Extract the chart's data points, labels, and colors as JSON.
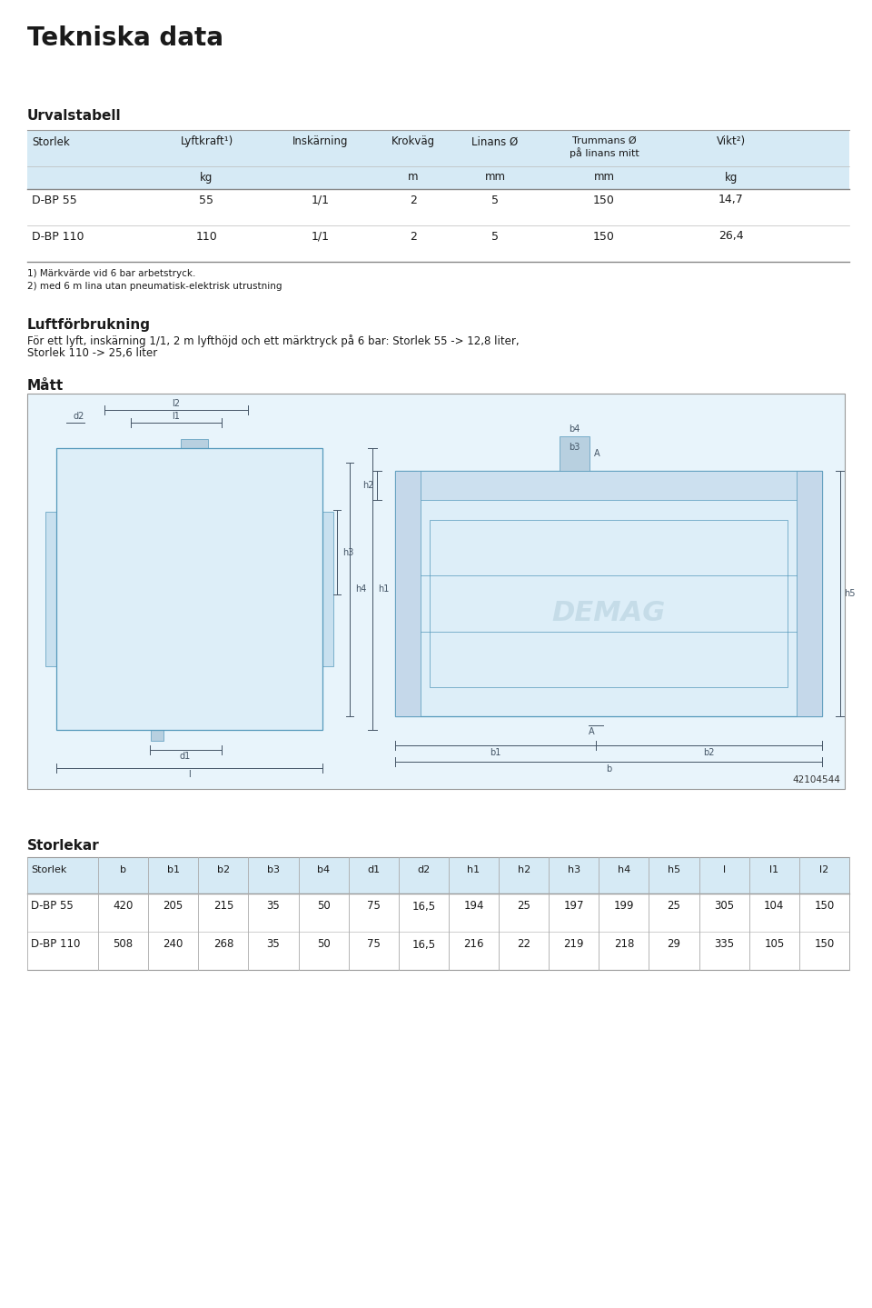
{
  "page_title": "Tekniska data",
  "section1_title": "Urvalstabell",
  "urval_col_names": [
    "Storlek",
    "Lyftkraft¹⁾",
    "Inskärning",
    "Krokväg",
    "Linans Ø",
    "Trummans Ø\npå linans mitt",
    "Vikt²⁾"
  ],
  "urval_units": [
    "",
    "kg",
    "",
    "m",
    "mm",
    "mm",
    "kg"
  ],
  "urval_rows": [
    [
      "D-BP 55",
      "55",
      "1/1",
      "2",
      "5",
      "150",
      "14,7"
    ],
    [
      "D-BP 110",
      "110",
      "1/1",
      "2",
      "5",
      "150",
      "26,4"
    ]
  ],
  "footnote1": "1) Märkvärde vid 6 bar arbetstryck.",
  "footnote2": "2) med 6 m lina utan pneumatisk-elektrisk utrustning",
  "section2_title": "Luftförbrukning",
  "luftforbrukning_line1": "För ett lyft, inskärning 1/1, 2 m lyfthöjd och ett märktryck på 6 bar: Storlek 55 -> 12,8 liter,",
  "luftforbrukning_line2": "Storlek 110 -> 25,6 liter",
  "section3_title": "Mått",
  "drawing_number": "42104544",
  "section4_title": "Storlekar",
  "storlekar_headers": [
    "Storlek",
    "b",
    "b1",
    "b2",
    "b3",
    "b4",
    "d1",
    "d2",
    "h1",
    "h2",
    "h3",
    "h4",
    "h5",
    "l",
    "l1",
    "l2"
  ],
  "storlekar_rows": [
    [
      "D-BP 55",
      "420",
      "205",
      "215",
      "35",
      "50",
      "75",
      "16,5",
      "194",
      "25",
      "197",
      "199",
      "25",
      "305",
      "104",
      "150"
    ],
    [
      "D-BP 110",
      "508",
      "240",
      "268",
      "35",
      "50",
      "75",
      "16,5",
      "216",
      "22",
      "219",
      "218",
      "29",
      "335",
      "105",
      "150"
    ]
  ],
  "bg_white": "#ffffff",
  "bg_light_blue": "#d6eaf5",
  "text_dark": "#1a1a1a",
  "line_color": "#aaaaaa",
  "draw_bg": "#e8f4fb",
  "draw_line": "#5599bb",
  "draw_line_dim": "#445566"
}
